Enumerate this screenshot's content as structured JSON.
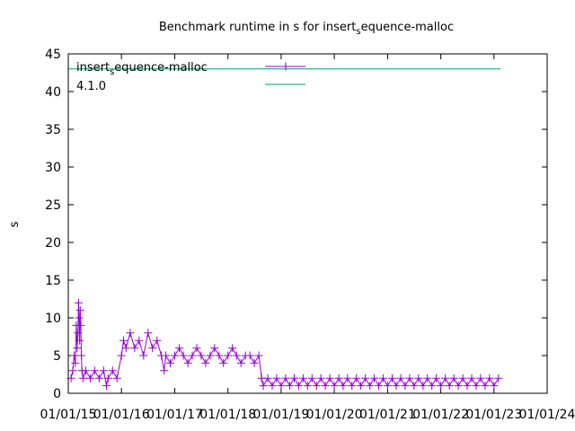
{
  "chart_data": {
    "type": "line",
    "title": "Benchmark runtime in s for insert_sequence-malloc",
    "title_parts": {
      "prefix": "Benchmark runtime in s for insert",
      "subscript": "s",
      "suffix": "equence-malloc"
    },
    "xlabel": "",
    "ylabel": "s",
    "xlim": [
      "2015-01-01",
      "2024-01-01"
    ],
    "ylim": [
      0,
      45
    ],
    "x_ticks": [
      "01/01/15",
      "01/01/16",
      "01/01/17",
      "01/01/18",
      "01/01/19",
      "01/01/20",
      "01/01/21",
      "01/01/22",
      "01/01/23",
      "01/01/24"
    ],
    "y_ticks": [
      "0",
      "5",
      "10",
      "15",
      "20",
      "25",
      "30",
      "35",
      "40",
      "45"
    ],
    "legend_position": "top-left",
    "series": [
      {
        "name": "insert_sequence-malloc",
        "name_parts": {
          "prefix": "insert",
          "subscript": "s",
          "suffix": "equence-malloc"
        },
        "color": "#9400d3",
        "marker": "plus",
        "points": [
          [
            "2015-01-20",
            2
          ],
          [
            "2015-02-01",
            3
          ],
          [
            "2015-02-10",
            5
          ],
          [
            "2015-02-18",
            4
          ],
          [
            "2015-02-25",
            9
          ],
          [
            "2015-03-03",
            6
          ],
          [
            "2015-03-08",
            8
          ],
          [
            "2015-03-12",
            12
          ],
          [
            "2015-03-16",
            10
          ],
          [
            "2015-03-20",
            7
          ],
          [
            "2015-03-24",
            11
          ],
          [
            "2015-03-28",
            9
          ],
          [
            "2015-04-01",
            5
          ],
          [
            "2015-04-05",
            3
          ],
          [
            "2015-04-12",
            2
          ],
          [
            "2015-05-01",
            3
          ],
          [
            "2015-06-01",
            2
          ],
          [
            "2015-07-01",
            3
          ],
          [
            "2015-08-01",
            2
          ],
          [
            "2015-09-01",
            3
          ],
          [
            "2015-09-20",
            1
          ],
          [
            "2015-10-01",
            2
          ],
          [
            "2015-11-01",
            3
          ],
          [
            "2015-12-01",
            2
          ],
          [
            "2016-01-01",
            5
          ],
          [
            "2016-01-15",
            7
          ],
          [
            "2016-02-01",
            6
          ],
          [
            "2016-03-01",
            8
          ],
          [
            "2016-04-01",
            6
          ],
          [
            "2016-05-01",
            7
          ],
          [
            "2016-06-01",
            5
          ],
          [
            "2016-07-01",
            8
          ],
          [
            "2016-08-01",
            6
          ],
          [
            "2016-09-01",
            7
          ],
          [
            "2016-10-01",
            5
          ],
          [
            "2016-10-20",
            3
          ],
          [
            "2016-11-01",
            5
          ],
          [
            "2016-12-01",
            4
          ],
          [
            "2017-01-01",
            5
          ],
          [
            "2017-02-01",
            6
          ],
          [
            "2017-03-01",
            5
          ],
          [
            "2017-04-01",
            4
          ],
          [
            "2017-05-01",
            5
          ],
          [
            "2017-06-01",
            6
          ],
          [
            "2017-07-01",
            5
          ],
          [
            "2017-08-01",
            4
          ],
          [
            "2017-09-01",
            5
          ],
          [
            "2017-10-01",
            6
          ],
          [
            "2017-11-01",
            5
          ],
          [
            "2017-12-01",
            4
          ],
          [
            "2018-01-01",
            5
          ],
          [
            "2018-02-01",
            6
          ],
          [
            "2018-03-01",
            5
          ],
          [
            "2018-04-01",
            4
          ],
          [
            "2018-05-01",
            5
          ],
          [
            "2018-06-01",
            5
          ],
          [
            "2018-07-01",
            4
          ],
          [
            "2018-08-01",
            5
          ],
          [
            "2018-08-20",
            2
          ],
          [
            "2018-09-01",
            1
          ],
          [
            "2018-10-01",
            2
          ],
          [
            "2018-11-01",
            1
          ],
          [
            "2018-12-01",
            2
          ],
          [
            "2019-01-01",
            1
          ],
          [
            "2019-02-01",
            2
          ],
          [
            "2019-03-01",
            1
          ],
          [
            "2019-04-01",
            2
          ],
          [
            "2019-05-01",
            1
          ],
          [
            "2019-06-01",
            2
          ],
          [
            "2019-07-01",
            1
          ],
          [
            "2019-08-01",
            2
          ],
          [
            "2019-09-01",
            1
          ],
          [
            "2019-10-01",
            2
          ],
          [
            "2019-11-01",
            1
          ],
          [
            "2019-12-01",
            2
          ],
          [
            "2020-01-01",
            1
          ],
          [
            "2020-02-01",
            2
          ],
          [
            "2020-03-01",
            1
          ],
          [
            "2020-04-01",
            2
          ],
          [
            "2020-05-01",
            1
          ],
          [
            "2020-06-01",
            2
          ],
          [
            "2020-07-01",
            1
          ],
          [
            "2020-08-01",
            2
          ],
          [
            "2020-09-01",
            1
          ],
          [
            "2020-10-01",
            2
          ],
          [
            "2020-11-01",
            1
          ],
          [
            "2020-12-01",
            2
          ],
          [
            "2021-01-01",
            1
          ],
          [
            "2021-02-01",
            2
          ],
          [
            "2021-03-01",
            1
          ],
          [
            "2021-04-01",
            2
          ],
          [
            "2021-05-01",
            1
          ],
          [
            "2021-06-01",
            2
          ],
          [
            "2021-07-01",
            1
          ],
          [
            "2021-08-01",
            2
          ],
          [
            "2021-09-01",
            1
          ],
          [
            "2021-10-01",
            2
          ],
          [
            "2021-11-01",
            1
          ],
          [
            "2021-12-01",
            2
          ],
          [
            "2022-01-01",
            1
          ],
          [
            "2022-02-01",
            2
          ],
          [
            "2022-03-01",
            1
          ],
          [
            "2022-04-01",
            2
          ],
          [
            "2022-05-01",
            1
          ],
          [
            "2022-06-01",
            2
          ],
          [
            "2022-07-01",
            1
          ],
          [
            "2022-08-01",
            2
          ],
          [
            "2022-09-01",
            1
          ],
          [
            "2022-10-01",
            2
          ],
          [
            "2022-11-01",
            1
          ],
          [
            "2022-12-01",
            2
          ],
          [
            "2023-01-01",
            1
          ],
          [
            "2023-02-01",
            2
          ]
        ]
      },
      {
        "name": "4.1.0",
        "color": "#009e73",
        "marker": "none",
        "points": [
          [
            "2015-01-01",
            43
          ],
          [
            "2023-02-15",
            43
          ]
        ]
      }
    ]
  }
}
